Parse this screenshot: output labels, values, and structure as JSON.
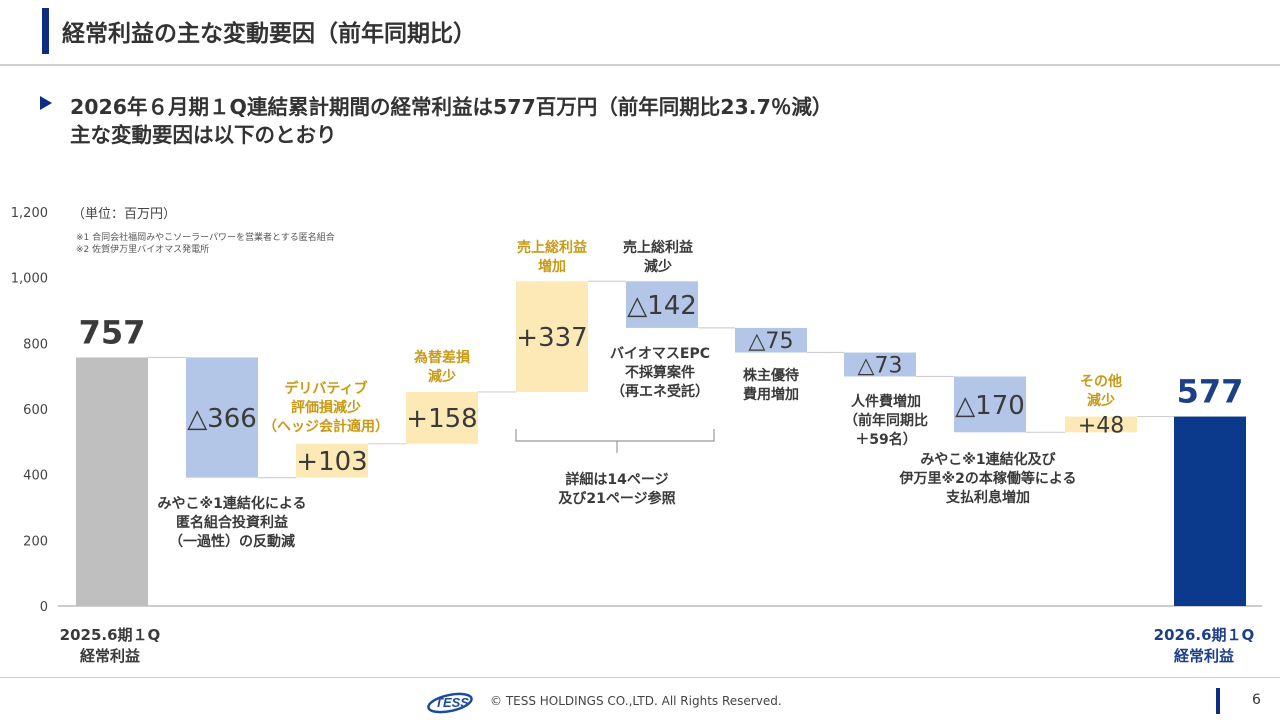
{
  "header": {
    "title": "経常利益の主な変動要因（前年同期比）"
  },
  "headline": {
    "line1": "2026年６月期１Q連結累計期間の経常利益は577百万円（前年同期比23.7％減）",
    "line2": "主な変動要因は以下のとおり"
  },
  "chart_data": {
    "type": "waterfall",
    "unit_label": "（単位：百万円）",
    "notes": [
      "※1 合同会社福岡みやこソーラーパワーを営業者とする匿名組合",
      "※2 佐賀伊万里バイオマス発電所"
    ],
    "ylim": [
      0,
      1200
    ],
    "y_ticks": [
      0,
      200,
      400,
      600,
      800,
      1000,
      1200
    ],
    "y_tick_labels": [
      "0",
      "200",
      "400",
      "600",
      "800",
      "1,000",
      "1,200"
    ],
    "colors": {
      "total_start": "#bfbfbf",
      "total_end": "#0b3a8c",
      "decrease": "#b4c6e7",
      "increase": "#fde9b6",
      "label_dark": "#3a3a3a",
      "label_gold": "#c99a16",
      "label_navy": "#1d3f86"
    },
    "steps": [
      {
        "name": "start",
        "kind": "total",
        "value": 757,
        "value_label": "757",
        "category": [
          "2025.6期１Q",
          "経常利益"
        ]
      },
      {
        "name": "miyako",
        "kind": "decrease",
        "value": -366,
        "value_label": "△366",
        "annotation": [
          "みやこ※1連結化による",
          "匿名組合投資利益",
          "（一過性）の反動減"
        ]
      },
      {
        "name": "derivative",
        "kind": "increase",
        "value": 103,
        "value_label": "+103",
        "annotation": [
          "デリバティブ",
          "評価損減少",
          "（ヘッジ会計適用）"
        ]
      },
      {
        "name": "fx",
        "kind": "increase",
        "value": 158,
        "value_label": "+158",
        "annotation": [
          "為替差損",
          "減少"
        ]
      },
      {
        "name": "gross-profit-increase",
        "kind": "increase",
        "value": 337,
        "value_label": "+337",
        "annotation": [
          "売上総利益",
          "増加"
        ]
      },
      {
        "name": "gross-profit-decrease",
        "kind": "decrease",
        "value": -142,
        "value_label": "△142",
        "annotation": [
          "売上総利益",
          "減少"
        ],
        "sub_annotation": [
          "バイオマスEPC",
          "不採算案件",
          "（再エネ受託）"
        ]
      },
      {
        "name": "shareholder-benefit",
        "kind": "decrease",
        "value": -75,
        "value_label": "△75",
        "annotation": [
          "株主優待",
          "費用増加"
        ]
      },
      {
        "name": "personnel",
        "kind": "decrease",
        "value": -73,
        "value_label": "△73",
        "annotation": [
          "人件費増加",
          "（前年同期比",
          "＋59名）"
        ]
      },
      {
        "name": "interest",
        "kind": "decrease",
        "value": -170,
        "value_label": "△170",
        "annotation": [
          "みやこ※1連結化及び",
          "伊万里※2の本稼働等による",
          "支払利息増加"
        ]
      },
      {
        "name": "other",
        "kind": "increase",
        "value": 48,
        "value_label": "+48",
        "annotation": [
          "その他",
          "減少"
        ]
      },
      {
        "name": "end",
        "kind": "total",
        "value": 577,
        "value_label": "577",
        "category": [
          "2026.6期１Q",
          "経常利益"
        ]
      }
    ],
    "bracket_note": [
      "詳細は14ページ",
      "及び21ページ参照"
    ]
  },
  "footer": {
    "logo_text": "TESS",
    "copyright": "© TESS HOLDINGS CO.,LTD. All Rights Reserved.",
    "page_number": "6"
  }
}
